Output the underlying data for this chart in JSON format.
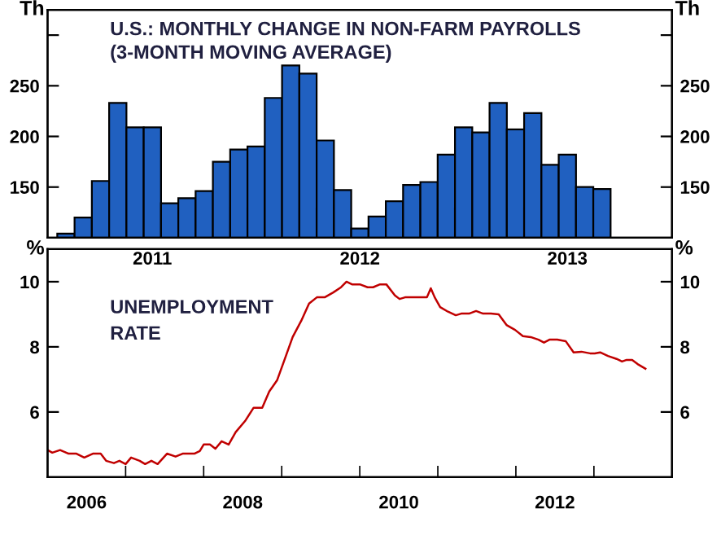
{
  "chart_data": [
    {
      "type": "bar",
      "title": "U.S.: MONTHLY CHANGE IN NON-FARM PAYROLLS\n(3-MONTH MOVING AVERAGE)",
      "ylabel": "Th",
      "y2label": "Th",
      "categories": [
        null,
        null,
        null,
        null,
        null,
        "2011",
        null,
        null,
        null,
        null,
        null,
        null,
        null,
        null,
        null,
        null,
        null,
        "2012",
        null,
        null,
        null,
        null,
        null,
        null,
        null,
        null,
        null,
        null,
        null,
        "2013",
        null,
        null
      ],
      "values": [
        104,
        120,
        156,
        233,
        209,
        209,
        134,
        139,
        146,
        175,
        187,
        190,
        238,
        270,
        262,
        196,
        147,
        109,
        121,
        136,
        152,
        155,
        182,
        209,
        204,
        233,
        207,
        223,
        172,
        182,
        150,
        148
      ],
      "color": "#2060c0",
      "ylim": [
        100,
        325
      ],
      "yticks": [
        150,
        200,
        250,
        {
          "value": 300,
          "label": null
        }
      ],
      "y2lim": [
        100,
        325
      ],
      "y2ticks": [
        150,
        200,
        250,
        {
          "value": 300,
          "label": null
        }
      ]
    },
    {
      "type": "line",
      "title": "UNEMPLOYMENT\nRATE",
      "ylabel": "%",
      "y2label": "%",
      "color": "#c00000",
      "x": [
        2006.0,
        2006.06,
        2006.16,
        2006.27,
        2006.37,
        2006.47,
        2006.58,
        2006.68,
        2006.75,
        2006.85,
        2006.92,
        2007.0,
        2007.07,
        2007.18,
        2007.25,
        2007.33,
        2007.41,
        2007.53,
        2007.64,
        2007.73,
        2007.88,
        2007.95,
        2008.0,
        2008.08,
        2008.15,
        2008.23,
        2008.32,
        2008.41,
        2008.53,
        2008.64,
        2008.75,
        2008.84,
        2008.94,
        2009.04,
        2009.14,
        2009.25,
        2009.35,
        2009.45,
        2009.55,
        2009.66,
        2009.76,
        2009.83,
        2009.9,
        2010.0,
        2010.1,
        2010.17,
        2010.26,
        2010.34,
        2010.45,
        2010.51,
        2010.58,
        2010.68,
        2010.79,
        2010.86,
        2010.91,
        2010.96,
        2011.03,
        2011.13,
        2011.23,
        2011.3,
        2011.4,
        2011.49,
        2011.58,
        2011.68,
        2011.78,
        2011.88,
        2011.99,
        2012.09,
        2012.19,
        2012.29,
        2012.36,
        2012.43,
        2012.53,
        2012.64,
        2012.74,
        2012.84,
        2012.95,
        2013.01,
        2013.08,
        2013.18,
        2013.29,
        2013.36,
        2013.42,
        2013.49,
        2013.56,
        2013.66
      ],
      "values": [
        4.83,
        4.75,
        4.83,
        4.72,
        4.72,
        4.6,
        4.72,
        4.72,
        4.5,
        4.43,
        4.5,
        4.4,
        4.6,
        4.5,
        4.4,
        4.5,
        4.4,
        4.72,
        4.63,
        4.72,
        4.72,
        4.8,
        5.0,
        5.0,
        4.87,
        5.1,
        5.0,
        5.38,
        5.72,
        6.13,
        6.13,
        6.63,
        6.97,
        7.63,
        8.3,
        8.8,
        9.33,
        9.52,
        9.52,
        9.67,
        9.83,
        10.0,
        9.92,
        9.92,
        9.83,
        9.83,
        9.92,
        9.92,
        9.58,
        9.47,
        9.52,
        9.52,
        9.52,
        9.52,
        9.8,
        9.52,
        9.22,
        9.08,
        8.97,
        9.02,
        9.02,
        9.1,
        9.02,
        9.02,
        9.0,
        8.67,
        8.52,
        8.33,
        8.3,
        8.22,
        8.13,
        8.22,
        8.22,
        8.17,
        7.83,
        7.85,
        7.8,
        7.8,
        7.83,
        7.72,
        7.63,
        7.55,
        7.6,
        7.6,
        7.47,
        7.33
      ],
      "xlim": [
        2006,
        2014
      ],
      "xticks": [
        {
          "value": 2006.5,
          "label": "2006"
        },
        {
          "value": 2007,
          "label": null
        },
        {
          "value": 2008,
          "label": null
        },
        {
          "value": 2008.5,
          "label": "2008"
        },
        {
          "value": 2009,
          "label": null
        },
        {
          "value": 2010,
          "label": null
        },
        {
          "value": 2010.5,
          "label": "2010"
        },
        {
          "value": 2011,
          "label": null
        },
        {
          "value": 2012,
          "label": null
        },
        {
          "value": 2012.5,
          "label": "2012"
        },
        {
          "value": 2013,
          "label": null
        }
      ],
      "ylim": [
        4,
        11
      ],
      "yticks": [
        6,
        8,
        10
      ],
      "y2lim": [
        4,
        11
      ],
      "y2ticks": [
        6,
        8,
        10
      ]
    }
  ]
}
